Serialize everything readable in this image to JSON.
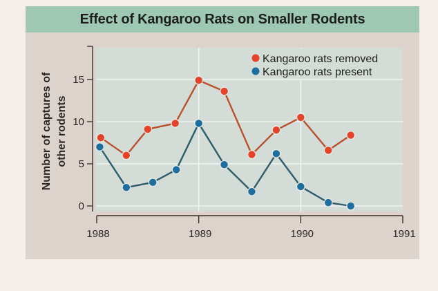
{
  "chart_data": {
    "type": "line",
    "title": "Effect of Kangaroo Rats on Smaller Rodents",
    "xlabel": "",
    "ylabel": [
      "Number of captures of",
      "other rodents"
    ],
    "xlim": [
      1988,
      1991
    ],
    "ylim": [
      0,
      18.8
    ],
    "xticks": [
      1988,
      1989,
      1990,
      1991
    ],
    "xtick_labels": [
      "1988",
      "1989",
      "1990",
      "1991"
    ],
    "yticks": [
      0,
      5,
      10,
      15
    ],
    "ytick_labels": [
      "0",
      "5",
      "10",
      "15"
    ],
    "grid": true,
    "legend_position": "top-right",
    "series": [
      {
        "name": "Kangaroo rats removed",
        "marker_color": "#e4432a",
        "line_color": "#b8502c",
        "x": [
          1988.04,
          1988.29,
          1988.5,
          1988.77,
          1989.0,
          1989.25,
          1989.52,
          1989.76,
          1990.0,
          1990.27,
          1990.49
        ],
        "values": [
          8.1,
          6.0,
          9.1,
          9.8,
          14.9,
          13.6,
          6.1,
          9.0,
          10.5,
          6.6,
          8.4
        ]
      },
      {
        "name": "Kangaroo rats present",
        "marker_color": "#1d6e9f",
        "line_color": "#2f5c6b",
        "x": [
          1988.03,
          1988.29,
          1988.55,
          1988.78,
          1989.0,
          1989.25,
          1989.52,
          1989.76,
          1990.0,
          1990.27,
          1990.49
        ],
        "values": [
          7.0,
          2.2,
          2.8,
          4.3,
          9.8,
          4.9,
          1.7,
          6.2,
          2.3,
          0.4,
          0.0
        ]
      }
    ]
  },
  "colors": {
    "title_band": "#9fc8b4",
    "panel": "#ddd3cd",
    "plot_bg": "#d3dcd6",
    "grid": "#f2f4f1",
    "axis": "#3b302a"
  }
}
